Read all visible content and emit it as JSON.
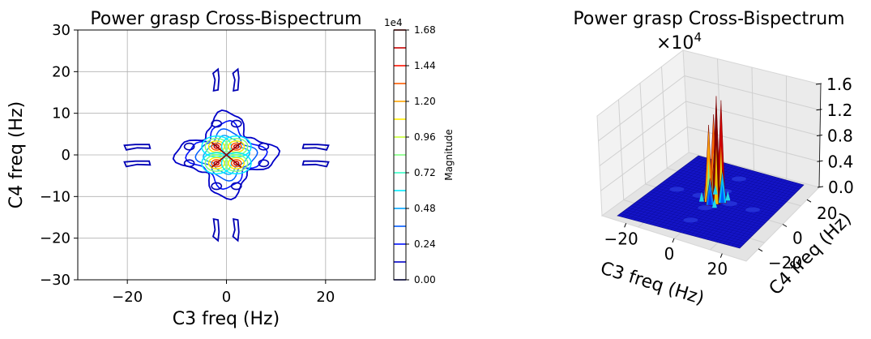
{
  "chart_data": [
    {
      "type": "contour",
      "title": "Power grasp Cross-Bispectrum",
      "xlabel": "C3 freq (Hz)",
      "ylabel": "C4 freq (Hz)",
      "xlim": [
        -30,
        30
      ],
      "ylim": [
        -30,
        30
      ],
      "xticks": [
        -20,
        0,
        20
      ],
      "yticks": [
        30,
        20,
        10,
        0,
        -10,
        -20,
        -30
      ],
      "xtick_labels": [
        "−20",
        "0",
        "20"
      ],
      "ytick_labels": [
        "30",
        "20",
        "10",
        "0",
        "−10",
        "−20",
        "−30"
      ],
      "grid": true,
      "colormap": "jet",
      "colorbar": {
        "label": "Magnitude",
        "offset_text": "1e4",
        "range": [
          0,
          16800
        ],
        "tick_values": [
          0,
          2400,
          4800,
          7200,
          9600,
          12000,
          14400,
          16800
        ],
        "tick_labels": [
          "0.00",
          "0.24",
          "0.48",
          "0.72",
          "0.96",
          "1.20",
          "1.44",
          "1.68"
        ],
        "levels": [
          0,
          1200,
          2400,
          3600,
          4800,
          6000,
          7200,
          8400,
          9600,
          10800,
          12000,
          13200,
          14400,
          15600,
          16800
        ]
      },
      "features": [
        {
          "x": 0,
          "y": 0,
          "kind": "central X-shaped peak cluster",
          "peak": 16800
        },
        {
          "x": -2,
          "y": 18,
          "kind": "vertical lobe"
        },
        {
          "x": 2,
          "y": 18,
          "kind": "vertical lobe"
        },
        {
          "x": -2,
          "y": -18,
          "kind": "vertical lobe"
        },
        {
          "x": 2,
          "y": -18,
          "kind": "vertical lobe"
        },
        {
          "x": -18,
          "y": 2,
          "kind": "horizontal lobe"
        },
        {
          "x": -18,
          "y": -2,
          "kind": "horizontal lobe"
        },
        {
          "x": 18,
          "y": 2,
          "kind": "horizontal lobe"
        },
        {
          "x": 18,
          "y": -2,
          "kind": "horizontal lobe"
        }
      ]
    },
    {
      "type": "surface3d",
      "title": "Power grasp Cross-Bispectrum",
      "offset_text": "×10",
      "offset_exponent": "4",
      "xlabel": "C3 freq (Hz)",
      "ylabel": "C4 freq (Hz)",
      "zlim": [
        0,
        16000
      ],
      "xtick_labels": [
        "−20",
        "0",
        "20"
      ],
      "ytick_labels": [
        "−20",
        "0",
        "20"
      ],
      "ztick_labels": [
        "0.0",
        "0.4",
        "0.8",
        "1.2",
        "1.6"
      ],
      "colormap": "jet",
      "peak_value": 16800
    }
  ],
  "colors": {
    "grid": "#b0b0b0",
    "contour_outer": "#0000b4",
    "surface_base": "#1010c8",
    "pane": "#f0f0f0"
  }
}
